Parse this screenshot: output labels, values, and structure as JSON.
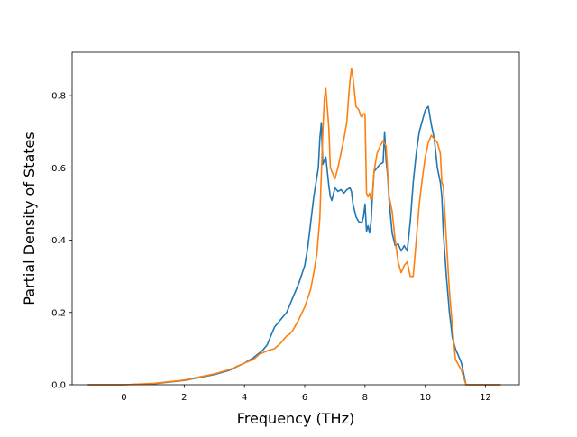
{
  "chart_data": {
    "type": "line",
    "xlabel": "Frequency (THz)",
    "ylabel": "Partial Density of States",
    "xlim": [
      -1.72,
      13.12
    ],
    "ylim": [
      0,
      0.92
    ],
    "x_ticks": [
      0,
      2,
      4,
      6,
      8,
      10,
      12
    ],
    "y_ticks": [
      0.0,
      0.2,
      0.4,
      0.6,
      0.8
    ],
    "x_tick_labels": [
      "0",
      "2",
      "4",
      "6",
      "8",
      "10",
      "12"
    ],
    "y_tick_labels": [
      "0.0",
      "0.2",
      "0.4",
      "0.6",
      "0.8"
    ],
    "grid": false,
    "legend": "none",
    "series": [
      {
        "color": "#1f77b4",
        "x": [
          -1.2,
          0,
          1,
          2,
          3,
          3.5,
          4,
          4.3,
          4.6,
          4.75,
          4.85,
          5.0,
          5.2,
          5.4,
          5.6,
          5.8,
          6.0,
          6.1,
          6.2,
          6.3,
          6.45,
          6.5,
          6.55,
          6.6,
          6.7,
          6.8,
          6.85,
          6.9,
          7.0,
          7.1,
          7.2,
          7.3,
          7.4,
          7.5,
          7.55,
          7.6,
          7.7,
          7.8,
          7.9,
          7.95,
          8.0,
          8.05,
          8.1,
          8.15,
          8.2,
          8.25,
          8.3,
          8.4,
          8.5,
          8.6,
          8.65,
          8.7,
          8.75,
          8.8,
          8.9,
          9.0,
          9.1,
          9.2,
          9.3,
          9.4,
          9.5,
          9.6,
          9.7,
          9.8,
          9.9,
          10.0,
          10.1,
          10.2,
          10.3,
          10.4,
          10.5,
          10.55,
          10.6,
          10.7,
          10.8,
          10.9,
          11.0,
          11.2,
          11.35,
          11.5,
          12.0,
          12.5
        ],
        "values": [
          0.0,
          0.0,
          0.003,
          0.012,
          0.028,
          0.04,
          0.06,
          0.075,
          0.095,
          0.11,
          0.13,
          0.16,
          0.18,
          0.2,
          0.24,
          0.28,
          0.33,
          0.38,
          0.45,
          0.52,
          0.6,
          0.68,
          0.725,
          0.61,
          0.63,
          0.55,
          0.52,
          0.51,
          0.545,
          0.535,
          0.54,
          0.53,
          0.54,
          0.545,
          0.535,
          0.5,
          0.465,
          0.45,
          0.45,
          0.465,
          0.5,
          0.425,
          0.44,
          0.42,
          0.45,
          0.53,
          0.59,
          0.6,
          0.61,
          0.615,
          0.7,
          0.62,
          0.58,
          0.51,
          0.42,
          0.385,
          0.39,
          0.37,
          0.385,
          0.37,
          0.45,
          0.56,
          0.64,
          0.7,
          0.73,
          0.76,
          0.77,
          0.72,
          0.68,
          0.6,
          0.56,
          0.52,
          0.42,
          0.3,
          0.2,
          0.13,
          0.1,
          0.06,
          0.0,
          0.0,
          0.0,
          0.0
        ]
      },
      {
        "color": "#ff7f0e",
        "x": [
          -1.2,
          0,
          1,
          2,
          3,
          3.5,
          4,
          4.3,
          4.5,
          4.8,
          5.0,
          5.2,
          5.4,
          5.5,
          5.6,
          5.8,
          6.0,
          6.1,
          6.2,
          6.3,
          6.4,
          6.5,
          6.55,
          6.6,
          6.65,
          6.7,
          6.8,
          6.85,
          7.0,
          7.1,
          7.2,
          7.3,
          7.4,
          7.45,
          7.5,
          7.55,
          7.6,
          7.7,
          7.8,
          7.85,
          7.9,
          7.95,
          8.0,
          8.05,
          8.1,
          8.15,
          8.2,
          8.25,
          8.3,
          8.4,
          8.5,
          8.6,
          8.7,
          8.8,
          8.9,
          9.0,
          9.1,
          9.2,
          9.3,
          9.4,
          9.5,
          9.6,
          9.7,
          9.8,
          9.9,
          10.0,
          10.1,
          10.2,
          10.3,
          10.4,
          10.5,
          10.55,
          10.6,
          10.7,
          10.8,
          10.9,
          11.0,
          11.2,
          11.35,
          11.5,
          12.0,
          12.5
        ],
        "values": [
          0.0,
          0.0,
          0.004,
          0.013,
          0.03,
          0.042,
          0.06,
          0.07,
          0.085,
          0.095,
          0.1,
          0.115,
          0.135,
          0.14,
          0.15,
          0.18,
          0.215,
          0.24,
          0.265,
          0.31,
          0.36,
          0.46,
          0.58,
          0.7,
          0.79,
          0.82,
          0.71,
          0.6,
          0.57,
          0.6,
          0.64,
          0.68,
          0.73,
          0.79,
          0.84,
          0.875,
          0.85,
          0.77,
          0.76,
          0.745,
          0.74,
          0.75,
          0.75,
          0.53,
          0.52,
          0.53,
          0.51,
          0.52,
          0.59,
          0.64,
          0.66,
          0.675,
          0.66,
          0.52,
          0.48,
          0.4,
          0.34,
          0.31,
          0.33,
          0.34,
          0.3,
          0.3,
          0.4,
          0.5,
          0.57,
          0.63,
          0.67,
          0.69,
          0.68,
          0.67,
          0.64,
          0.56,
          0.55,
          0.4,
          0.26,
          0.16,
          0.07,
          0.04,
          0.0,
          0.0,
          0.0,
          0.0
        ]
      }
    ]
  }
}
